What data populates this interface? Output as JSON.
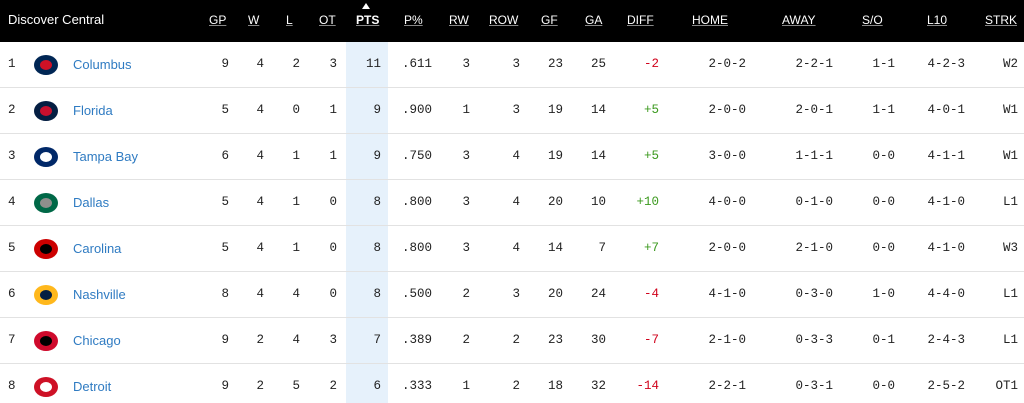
{
  "header": {
    "title": "Discover Central",
    "columns": [
      "GP",
      "W",
      "L",
      "OT",
      "PTS",
      "P%",
      "RW",
      "ROW",
      "GF",
      "GA",
      "DIFF",
      "HOME",
      "AWAY",
      "S/O",
      "L10",
      "STRK"
    ]
  },
  "table": {
    "rows": [
      [
        1,
        "Columbus",
        9,
        4,
        2,
        3,
        11,
        ".611",
        3,
        3,
        23,
        25,
        "-2",
        "2-0-2",
        "2-2-1",
        "1-1",
        "4-2-3",
        "W2"
      ],
      [
        2,
        "Florida",
        5,
        4,
        0,
        1,
        9,
        ".900",
        1,
        3,
        19,
        14,
        "+5",
        "2-0-0",
        "2-0-1",
        "1-1",
        "4-0-1",
        "W1"
      ],
      [
        3,
        "Tampa Bay",
        6,
        4,
        1,
        1,
        9,
        ".750",
        3,
        4,
        19,
        14,
        "+5",
        "3-0-0",
        "1-1-1",
        "0-0",
        "4-1-1",
        "W1"
      ],
      [
        4,
        "Dallas",
        5,
        4,
        1,
        0,
        8,
        ".800",
        3,
        4,
        20,
        10,
        "+10",
        "4-0-0",
        "0-1-0",
        "0-0",
        "4-1-0",
        "L1"
      ],
      [
        5,
        "Carolina",
        5,
        4,
        1,
        0,
        8,
        ".800",
        3,
        4,
        14,
        7,
        "+7",
        "2-0-0",
        "2-1-0",
        "0-0",
        "4-1-0",
        "W3"
      ],
      [
        6,
        "Nashville",
        8,
        4,
        4,
        0,
        8,
        ".500",
        2,
        3,
        20,
        24,
        "-4",
        "4-1-0",
        "0-3-0",
        "1-0",
        "4-4-0",
        "L1"
      ],
      [
        7,
        "Chicago",
        9,
        2,
        4,
        3,
        7,
        ".389",
        2,
        2,
        23,
        30,
        "-7",
        "2-1-0",
        "0-3-3",
        "0-1",
        "2-4-3",
        "L1"
      ],
      [
        8,
        "Detroit",
        9,
        2,
        5,
        2,
        6,
        ".333",
        1,
        2,
        18,
        32,
        "-14",
        "2-2-1",
        "0-3-1",
        "0-0",
        "2-5-2",
        "OT1"
      ]
    ]
  }
}
